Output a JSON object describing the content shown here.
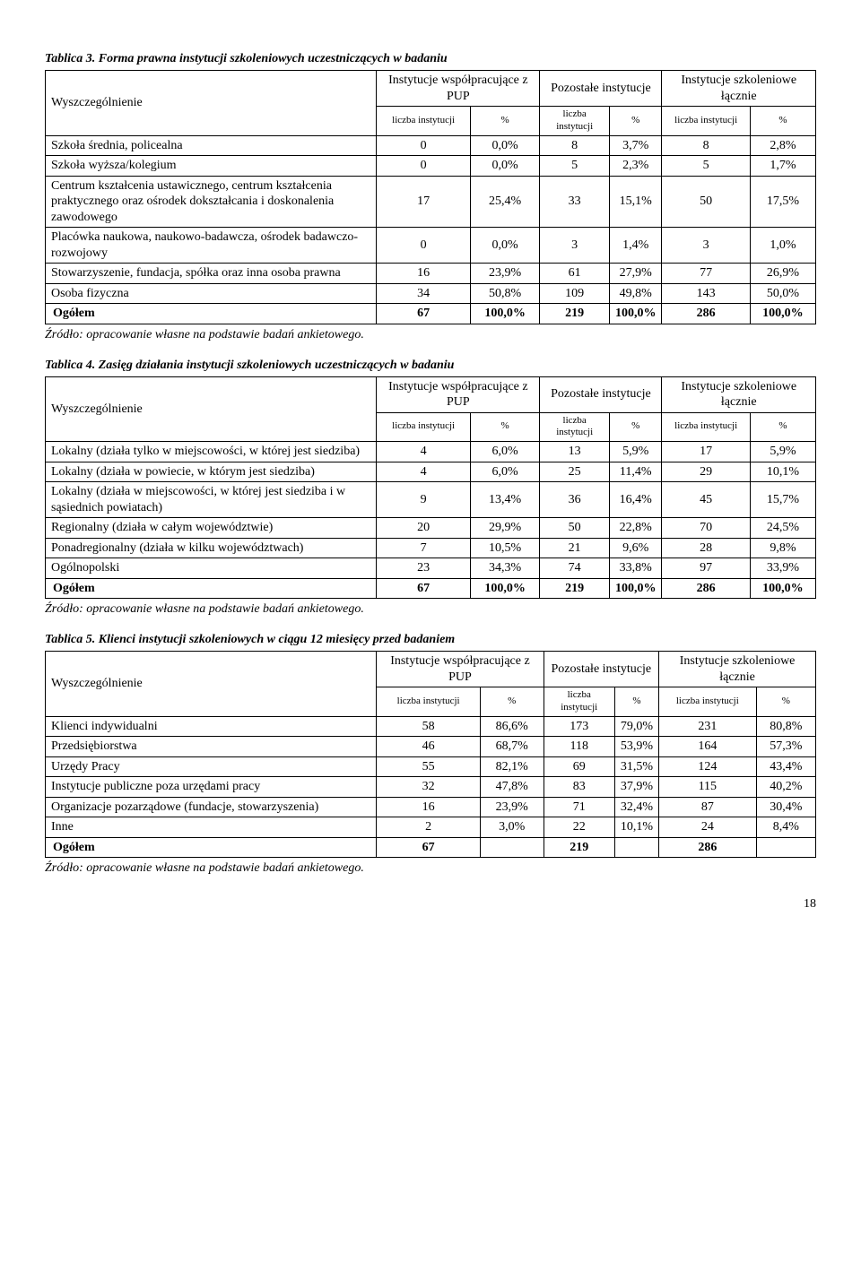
{
  "page_number": "18",
  "source_text": "Źródło: opracowanie własne na podstawie badań ankietowego.",
  "source_text2": "Źródło: opracowanie własne na podstawie badań ankietowego.",
  "col_group_headers": {
    "wysz": "Wyszczególnienie",
    "g1": "Instytucje współpracujące z PUP",
    "g2": "Pozostałe instytucje",
    "g3": "Instytucje szkoleniowe łącznie",
    "sub_liczba": "liczba instytucji",
    "sub_pct": "%"
  },
  "table3": {
    "caption": "Tablica 3. Forma prawna instytucji szkoleniowych uczestniczących w badaniu",
    "rows": [
      {
        "label": "Szkoła średnia, policealna",
        "c": [
          "0",
          "0,0%",
          "8",
          "3,7%",
          "8",
          "2,8%"
        ]
      },
      {
        "label": "Szkoła wyższa/kolegium",
        "c": [
          "0",
          "0,0%",
          "5",
          "2,3%",
          "5",
          "1,7%"
        ]
      },
      {
        "label": "Centrum kształcenia ustawicznego, centrum kształcenia praktycznego oraz ośrodek dokształcania i doskonalenia zawodowego",
        "c": [
          "17",
          "25,4%",
          "33",
          "15,1%",
          "50",
          "17,5%"
        ]
      },
      {
        "label": "Placówka naukowa, naukowo-badawcza, ośrodek badawczo-rozwojowy",
        "c": [
          "0",
          "0,0%",
          "3",
          "1,4%",
          "3",
          "1,0%"
        ]
      },
      {
        "label": "Stowarzyszenie, fundacja, spółka oraz inna osoba prawna",
        "c": [
          "16",
          "23,9%",
          "61",
          "27,9%",
          "77",
          "26,9%"
        ]
      },
      {
        "label": "Osoba fizyczna",
        "c": [
          "34",
          "50,8%",
          "109",
          "49,8%",
          "143",
          "50,0%"
        ]
      }
    ],
    "total": {
      "label": "Ogółem",
      "c": [
        "67",
        "100,0%",
        "219",
        "100,0%",
        "286",
        "100,0%"
      ]
    }
  },
  "table4": {
    "caption": "Tablica 4. Zasięg działania instytucji szkoleniowych uczestniczących w badaniu",
    "rows": [
      {
        "label": "Lokalny (działa tylko w miejscowości, w której jest siedziba)",
        "c": [
          "4",
          "6,0%",
          "13",
          "5,9%",
          "17",
          "5,9%"
        ]
      },
      {
        "label": "Lokalny (działa w powiecie, w którym jest siedziba)",
        "c": [
          "4",
          "6,0%",
          "25",
          "11,4%",
          "29",
          "10,1%"
        ]
      },
      {
        "label": "Lokalny (działa w miejscowości, w której jest siedziba i w sąsiednich powiatach)",
        "c": [
          "9",
          "13,4%",
          "36",
          "16,4%",
          "45",
          "15,7%"
        ]
      },
      {
        "label": "Regionalny (działa w całym województwie)",
        "c": [
          "20",
          "29,9%",
          "50",
          "22,8%",
          "70",
          "24,5%"
        ]
      },
      {
        "label": "Ponadregionalny (działa w kilku województwach)",
        "c": [
          "7",
          "10,5%",
          "21",
          "9,6%",
          "28",
          "9,8%"
        ]
      },
      {
        "label": "Ogólnopolski",
        "c": [
          "23",
          "34,3%",
          "74",
          "33,8%",
          "97",
          "33,9%"
        ]
      }
    ],
    "total": {
      "label": "Ogółem",
      "c": [
        "67",
        "100,0%",
        "219",
        "100,0%",
        "286",
        "100,0%"
      ]
    }
  },
  "table5": {
    "caption_prefix": "Tablica 5. Klienci instytucji szkoleniowych ",
    "caption_italic": "w ciągu 12 miesięcy przed badaniem",
    "rows": [
      {
        "label": "Klienci indywidualni",
        "c": [
          "58",
          "86,6%",
          "173",
          "79,0%",
          "231",
          "80,8%"
        ]
      },
      {
        "label": "Przedsiębiorstwa",
        "c": [
          "46",
          "68,7%",
          "118",
          "53,9%",
          "164",
          "57,3%"
        ]
      },
      {
        "label": "Urzędy Pracy",
        "c": [
          "55",
          "82,1%",
          "69",
          "31,5%",
          "124",
          "43,4%"
        ]
      },
      {
        "label": "Instytucje publiczne poza urzędami pracy",
        "c": [
          "32",
          "47,8%",
          "83",
          "37,9%",
          "115",
          "40,2%"
        ]
      },
      {
        "label": "Organizacje pozarządowe (fundacje, stowarzyszenia)",
        "c": [
          "16",
          "23,9%",
          "71",
          "32,4%",
          "87",
          "30,4%"
        ]
      },
      {
        "label": "Inne",
        "c": [
          "2",
          "3,0%",
          "22",
          "10,1%",
          "24",
          "8,4%"
        ]
      }
    ],
    "total": {
      "label": "Ogółem",
      "c": [
        "67",
        "",
        "219",
        "",
        "286",
        ""
      ]
    }
  }
}
